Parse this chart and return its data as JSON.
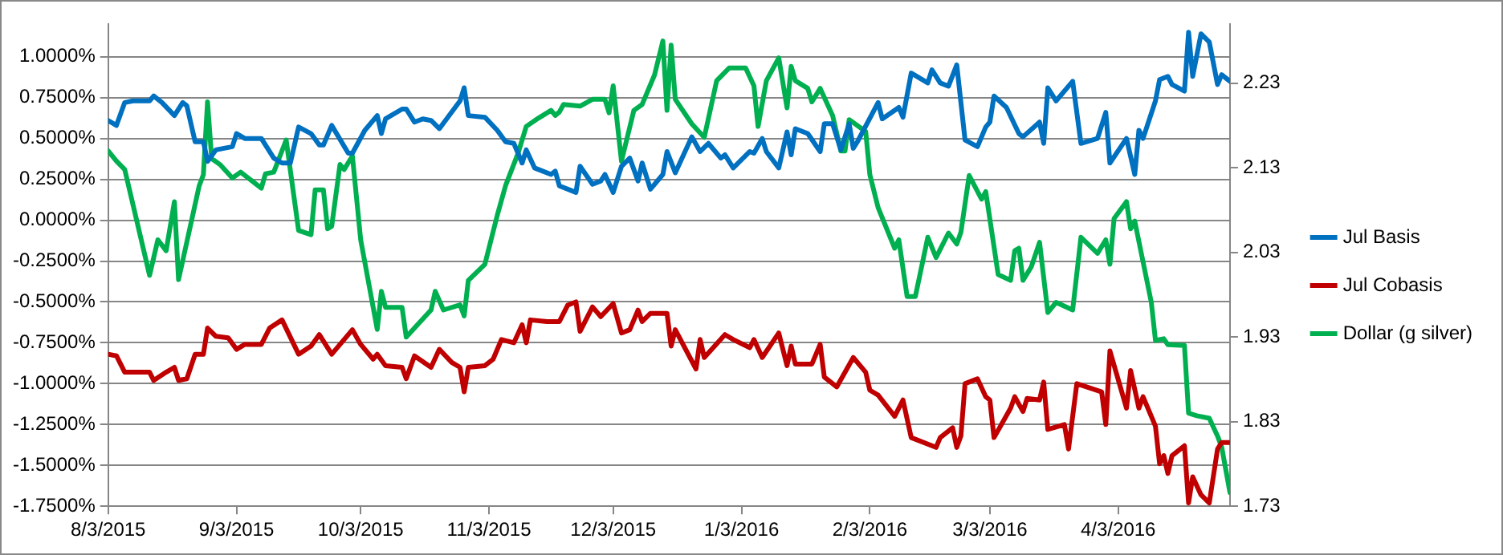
{
  "chart_data": {
    "type": "line",
    "legend": "right",
    "grid": "y",
    "marker": "none",
    "line_style": "solid",
    "xlim": [
      "2015-08-03",
      "2016-04-30"
    ],
    "xticks": [
      {
        "value": "2015-08-03",
        "label": "8/3/2015"
      },
      {
        "value": "2015-09-03",
        "label": "9/3/2015"
      },
      {
        "value": "2015-10-03",
        "label": "10/3/2015"
      },
      {
        "value": "2015-11-03",
        "label": "11/3/2015"
      },
      {
        "value": "2015-12-03",
        "label": "12/3/2015"
      },
      {
        "value": "2016-01-03",
        "label": "1/3/2016"
      },
      {
        "value": "2016-02-03",
        "label": "2/3/2016"
      },
      {
        "value": "2016-03-03",
        "label": "3/3/2016"
      },
      {
        "value": "2016-04-03",
        "label": "4/3/2016"
      }
    ],
    "ylim": [
      -1.75,
      1.2
    ],
    "yticks": [
      {
        "value": -1.75,
        "label": "-1.7500%"
      },
      {
        "value": -1.5,
        "label": "-1.5000%"
      },
      {
        "value": -1.25,
        "label": "-1.2500%"
      },
      {
        "value": -1,
        "label": "-1.0000%"
      },
      {
        "value": -0.75,
        "label": "-0.7500%"
      },
      {
        "value": -0.5,
        "label": "-0.5000%"
      },
      {
        "value": -0.25,
        "label": "-0.2500%"
      },
      {
        "value": 0,
        "label": "0.0000%"
      },
      {
        "value": 0.25,
        "label": "0.2500%"
      },
      {
        "value": 0.5,
        "label": "0.5000%"
      },
      {
        "value": 0.75,
        "label": "0.7500%"
      },
      {
        "value": 1,
        "label": "1.0000%"
      }
    ],
    "y2lim": [
      1.73,
      2.3
    ],
    "y2ticks": [
      1.73,
      1.83,
      1.93,
      2.03,
      2.13,
      2.23
    ],
    "series": [
      {
        "name": "Jul Basis",
        "color": "#0070c0",
        "x": [
          "2015-08-03",
          "2015-08-05",
          "2015-08-07",
          "2015-08-09",
          "2015-08-13",
          "2015-08-14",
          "2015-08-16",
          "2015-08-19",
          "2015-08-21",
          "2015-08-22",
          "2015-08-24",
          "2015-08-26",
          "2015-08-27",
          "2015-08-29",
          "2015-09-02",
          "2015-09-03",
          "2015-09-05",
          "2015-09-09",
          "2015-09-12",
          "2015-09-14",
          "2015-09-16",
          "2015-09-18",
          "2015-09-21",
          "2015-09-23",
          "2015-09-24",
          "2015-09-26",
          "2015-09-30",
          "2015-10-01",
          "2015-10-04",
          "2015-10-07",
          "2015-10-08",
          "2015-10-09",
          "2015-10-13",
          "2015-10-14",
          "2015-10-16",
          "2015-10-18",
          "2015-10-20",
          "2015-10-22",
          "2015-10-27",
          "2015-10-28",
          "2015-10-29",
          "2015-11-02",
          "2015-11-05",
          "2015-11-07",
          "2015-11-09",
          "2015-11-11",
          "2015-11-12",
          "2015-11-14",
          "2015-11-18",
          "2015-11-19",
          "2015-11-20",
          "2015-11-24",
          "2015-11-25",
          "2015-11-28",
          "2015-11-30",
          "2015-12-01",
          "2015-12-03",
          "2015-12-05",
          "2015-12-07",
          "2015-12-09",
          "2015-12-10",
          "2015-12-12",
          "2015-12-15",
          "2015-12-16",
          "2015-12-18",
          "2015-12-22",
          "2015-12-24",
          "2015-12-26",
          "2015-12-29",
          "2015-12-30",
          "2016-01-01",
          "2016-01-05",
          "2016-01-06",
          "2016-01-08",
          "2016-01-09",
          "2016-01-12",
          "2016-01-14",
          "2016-01-15",
          "2016-01-16",
          "2016-01-19",
          "2016-01-22",
          "2016-01-23",
          "2016-01-25",
          "2016-01-27",
          "2016-01-29",
          "2016-01-30",
          "2016-01-31",
          "2016-02-05",
          "2016-02-06",
          "2016-02-10",
          "2016-02-11",
          "2016-02-13",
          "2016-02-17",
          "2016-02-18",
          "2016-02-20",
          "2016-02-22",
          "2016-02-24",
          "2016-02-26",
          "2016-02-29",
          "2016-03-02",
          "2016-03-03",
          "2016-03-04",
          "2016-03-07",
          "2016-03-10",
          "2016-03-11",
          "2016-03-15",
          "2016-03-16",
          "2016-03-17",
          "2016-03-19",
          "2016-03-23",
          "2016-03-25",
          "2016-03-29",
          "2016-03-31",
          "2016-04-01",
          "2016-04-05",
          "2016-04-07",
          "2016-04-08",
          "2016-04-09",
          "2016-04-12",
          "2016-04-13",
          "2016-04-15",
          "2016-04-16",
          "2016-04-19",
          "2016-04-20",
          "2016-04-21",
          "2016-04-23",
          "2016-04-25",
          "2016-04-27",
          "2016-04-28",
          "2016-04-30"
        ],
        "values": [
          0.61,
          0.58,
          0.72,
          0.73,
          0.73,
          0.76,
          0.72,
          0.64,
          0.72,
          0.7,
          0.48,
          0.48,
          0.36,
          0.43,
          0.45,
          0.53,
          0.5,
          0.5,
          0.38,
          0.35,
          0.35,
          0.57,
          0.53,
          0.46,
          0.46,
          0.58,
          0.41,
          0.41,
          0.55,
          0.64,
          0.53,
          0.62,
          0.68,
          0.68,
          0.6,
          0.62,
          0.61,
          0.56,
          0.73,
          0.81,
          0.64,
          0.63,
          0.55,
          0.48,
          0.47,
          0.35,
          0.43,
          0.32,
          0.28,
          0.3,
          0.21,
          0.17,
          0.33,
          0.22,
          0.24,
          0.28,
          0.17,
          0.33,
          0.38,
          0.24,
          0.35,
          0.19,
          0.28,
          0.42,
          0.29,
          0.51,
          0.42,
          0.47,
          0.38,
          0.4,
          0.32,
          0.42,
          0.41,
          0.5,
          0.42,
          0.32,
          0.54,
          0.4,
          0.56,
          0.53,
          0.42,
          0.59,
          0.59,
          0.43,
          0.59,
          0.44,
          0.48,
          0.72,
          0.62,
          0.69,
          0.63,
          0.9,
          0.84,
          0.92,
          0.84,
          0.82,
          0.95,
          0.49,
          0.45,
          0.57,
          0.6,
          0.76,
          0.69,
          0.53,
          0.51,
          0.6,
          0.47,
          0.81,
          0.73,
          0.85,
          0.47,
          0.5,
          0.66,
          0.35,
          0.5,
          0.28,
          0.55,
          0.5,
          0.73,
          0.86,
          0.88,
          0.83,
          0.79,
          1.15,
          0.88,
          1.14,
          1.09,
          0.83,
          0.89,
          0.85
        ]
      },
      {
        "name": "Jul Cobasis",
        "color": "#c00000",
        "x": [
          "2015-08-03",
          "2015-08-05",
          "2015-08-07",
          "2015-08-09",
          "2015-08-13",
          "2015-08-14",
          "2015-08-17",
          "2015-08-19",
          "2015-08-20",
          "2015-08-22",
          "2015-08-24",
          "2015-08-26",
          "2015-08-27",
          "2015-08-29",
          "2015-09-01",
          "2015-09-03",
          "2015-09-05",
          "2015-09-09",
          "2015-09-11",
          "2015-09-14",
          "2015-09-18",
          "2015-09-21",
          "2015-09-23",
          "2015-09-26",
          "2015-10-01",
          "2015-10-03",
          "2015-10-06",
          "2015-10-07",
          "2015-10-09",
          "2015-10-13",
          "2015-10-14",
          "2015-10-16",
          "2015-10-20",
          "2015-10-22",
          "2015-10-25",
          "2015-10-27",
          "2015-10-28",
          "2015-10-29",
          "2015-11-02",
          "2015-11-04",
          "2015-11-06",
          "2015-11-09",
          "2015-11-11",
          "2015-11-12",
          "2015-11-13",
          "2015-11-17",
          "2015-11-20",
          "2015-11-22",
          "2015-11-24",
          "2015-11-25",
          "2015-11-28",
          "2015-11-30",
          "2015-12-03",
          "2015-12-05",
          "2015-12-07",
          "2015-12-09",
          "2015-12-10",
          "2015-12-12",
          "2015-12-16",
          "2015-12-17",
          "2015-12-18",
          "2015-12-23",
          "2015-12-24",
          "2015-12-25",
          "2015-12-30",
          "2016-01-01",
          "2016-01-05",
          "2016-01-06",
          "2016-01-08",
          "2016-01-12",
          "2016-01-14",
          "2016-01-15",
          "2016-01-16",
          "2016-01-20",
          "2016-01-22",
          "2016-01-23",
          "2016-01-26",
          "2016-01-30",
          "2016-02-02",
          "2016-02-03",
          "2016-02-05",
          "2016-02-09",
          "2016-02-11",
          "2016-02-13",
          "2016-02-18",
          "2016-02-19",
          "2016-02-20",
          "2016-02-23",
          "2016-02-24",
          "2016-02-25",
          "2016-02-26",
          "2016-02-29",
          "2016-03-02",
          "2016-03-03",
          "2016-03-04",
          "2016-03-08",
          "2016-03-09",
          "2016-03-11",
          "2016-03-12",
          "2016-03-15",
          "2016-03-16",
          "2016-03-17",
          "2016-03-21",
          "2016-03-22",
          "2016-03-24",
          "2016-03-30",
          "2016-03-31",
          "2016-04-01",
          "2016-04-05",
          "2016-04-06",
          "2016-04-08",
          "2016-04-09",
          "2016-04-12",
          "2016-04-13",
          "2016-04-14",
          "2016-04-15",
          "2016-04-16",
          "2016-04-19",
          "2016-04-20",
          "2016-04-21",
          "2016-04-23",
          "2016-04-25",
          "2016-04-27",
          "2016-04-28",
          "2016-04-30"
        ],
        "values": [
          -0.82,
          -0.83,
          -0.93,
          -0.93,
          -0.93,
          -0.98,
          -0.93,
          -0.9,
          -0.98,
          -0.97,
          -0.82,
          -0.82,
          -0.66,
          -0.71,
          -0.72,
          -0.79,
          -0.76,
          -0.76,
          -0.66,
          -0.61,
          -0.82,
          -0.77,
          -0.7,
          -0.82,
          -0.67,
          -0.76,
          -0.85,
          -0.82,
          -0.89,
          -0.9,
          -0.97,
          -0.83,
          -0.9,
          -0.79,
          -0.87,
          -0.9,
          -1.05,
          -0.9,
          -0.89,
          -0.85,
          -0.73,
          -0.75,
          -0.64,
          -0.75,
          -0.61,
          -0.62,
          -0.62,
          -0.52,
          -0.5,
          -0.68,
          -0.53,
          -0.59,
          -0.51,
          -0.69,
          -0.67,
          -0.55,
          -0.62,
          -0.57,
          -0.57,
          -0.77,
          -0.67,
          -0.91,
          -0.73,
          -0.84,
          -0.7,
          -0.73,
          -0.78,
          -0.73,
          -0.84,
          -0.69,
          -0.89,
          -0.77,
          -0.88,
          -0.88,
          -0.76,
          -0.96,
          -1.02,
          -0.84,
          -0.93,
          -1.04,
          -1.07,
          -1.2,
          -1.1,
          -1.33,
          -1.38,
          -1.39,
          -1.33,
          -1.27,
          -1.39,
          -1.32,
          -1.0,
          -0.97,
          -1.08,
          -1.1,
          -1.33,
          -1.15,
          -1.08,
          -1.17,
          -1.09,
          -1.1,
          -0.99,
          -1.28,
          -1.25,
          -1.4,
          -1.0,
          -1.05,
          -1.25,
          -0.8,
          -1.15,
          -0.92,
          -1.15,
          -1.08,
          -1.26,
          -1.49,
          -1.44,
          -1.55,
          -1.44,
          -1.38,
          -1.73,
          -1.57,
          -1.68,
          -1.73,
          -1.4,
          -1.36,
          -1.36
        ]
      },
      {
        "name": "Dollar (g silver)",
        "color": "#00b050",
        "axis": "y2",
        "x": [
          "2015-08-03",
          "2015-08-05",
          "2015-08-07",
          "2015-08-13",
          "2015-08-15",
          "2015-08-17",
          "2015-08-19",
          "2015-08-20",
          "2015-08-25",
          "2015-08-26",
          "2015-08-27",
          "2015-08-28",
          "2015-08-30",
          "2015-09-02",
          "2015-09-04",
          "2015-09-09",
          "2015-09-10",
          "2015-09-12",
          "2015-09-15",
          "2015-09-18",
          "2015-09-21",
          "2015-09-22",
          "2015-09-24",
          "2015-09-25",
          "2015-09-26",
          "2015-09-28",
          "2015-09-29",
          "2015-10-01",
          "2015-10-03",
          "2015-10-07",
          "2015-10-08",
          "2015-10-09",
          "2015-10-13",
          "2015-10-14",
          "2015-10-20",
          "2015-10-21",
          "2015-10-23",
          "2015-10-27",
          "2015-10-28",
          "2015-10-29",
          "2015-11-02",
          "2015-11-05",
          "2015-11-07",
          "2015-11-10",
          "2015-11-12",
          "2015-11-15",
          "2015-11-18",
          "2015-11-19",
          "2015-11-20",
          "2015-11-21",
          "2015-11-25",
          "2015-11-28",
          "2015-12-01",
          "2015-12-02",
          "2015-12-03",
          "2015-12-05",
          "2015-12-08",
          "2015-12-10",
          "2015-12-13",
          "2015-12-15",
          "2015-12-16",
          "2015-12-17",
          "2015-12-18",
          "2015-12-22",
          "2015-12-25",
          "2015-12-28",
          "2015-12-31",
          "2016-01-04",
          "2016-01-06",
          "2016-01-07",
          "2016-01-09",
          "2016-01-12",
          "2016-01-14",
          "2016-01-15",
          "2016-01-16",
          "2016-01-19",
          "2016-01-20",
          "2016-01-22",
          "2016-01-25",
          "2016-01-27",
          "2016-01-28",
          "2016-01-29",
          "2016-02-02",
          "2016-02-03",
          "2016-02-05",
          "2016-02-09",
          "2016-02-10",
          "2016-02-12",
          "2016-02-14",
          "2016-02-17",
          "2016-02-19",
          "2016-02-22",
          "2016-02-24",
          "2016-02-25",
          "2016-02-27",
          "2016-03-01",
          "2016-03-02",
          "2016-03-05",
          "2016-03-08",
          "2016-03-09",
          "2016-03-10",
          "2016-03-11",
          "2016-03-13",
          "2016-03-15",
          "2016-03-17",
          "2016-03-19",
          "2016-03-23",
          "2016-03-25",
          "2016-03-29",
          "2016-03-31",
          "2016-04-01",
          "2016-04-02",
          "2016-04-05",
          "2016-04-06",
          "2016-04-07",
          "2016-04-11",
          "2016-04-12",
          "2016-04-14",
          "2016-04-15",
          "2016-04-19",
          "2016-04-20",
          "2016-04-22",
          "2016-04-25",
          "2016-04-27",
          "2016-04-28",
          "2016-04-30"
        ],
        "values": [
          2.15,
          2.138,
          2.128,
          2.003,
          2.045,
          2.032,
          2.09,
          1.998,
          2.109,
          2.122,
          2.208,
          2.141,
          2.134,
          2.118,
          2.125,
          2.106,
          2.123,
          2.125,
          2.163,
          2.056,
          2.051,
          2.104,
          2.104,
          2.058,
          2.061,
          2.134,
          2.128,
          2.144,
          2.045,
          1.939,
          1.984,
          1.965,
          1.965,
          1.93,
          1.962,
          1.984,
          1.962,
          1.968,
          1.955,
          1.997,
          2.016,
          2.074,
          2.109,
          2.147,
          2.179,
          2.189,
          2.198,
          2.192,
          2.196,
          2.205,
          2.203,
          2.211,
          2.211,
          2.195,
          2.227,
          2.138,
          2.198,
          2.205,
          2.24,
          2.28,
          2.198,
          2.275,
          2.211,
          2.182,
          2.166,
          2.233,
          2.248,
          2.248,
          2.227,
          2.179,
          2.233,
          2.26,
          2.201,
          2.25,
          2.233,
          2.224,
          2.208,
          2.224,
          2.192,
          2.15,
          2.15,
          2.187,
          2.173,
          2.122,
          2.083,
          2.035,
          2.045,
          1.978,
          1.978,
          2.048,
          2.024,
          2.053,
          2.04,
          2.054,
          2.121,
          2.093,
          2.102,
          2.004,
          1.997,
          2.032,
          2.035,
          1.997,
          2.013,
          2.042,
          1.959,
          1.971,
          1.962,
          2.048,
          2.029,
          2.045,
          2.016,
          2.07,
          2.09,
          2.058,
          2.067,
          1.971,
          1.926,
          1.928,
          1.921,
          1.92,
          1.84,
          1.837,
          1.834,
          1.813,
          1.8,
          1.746
        ]
      }
    ]
  }
}
